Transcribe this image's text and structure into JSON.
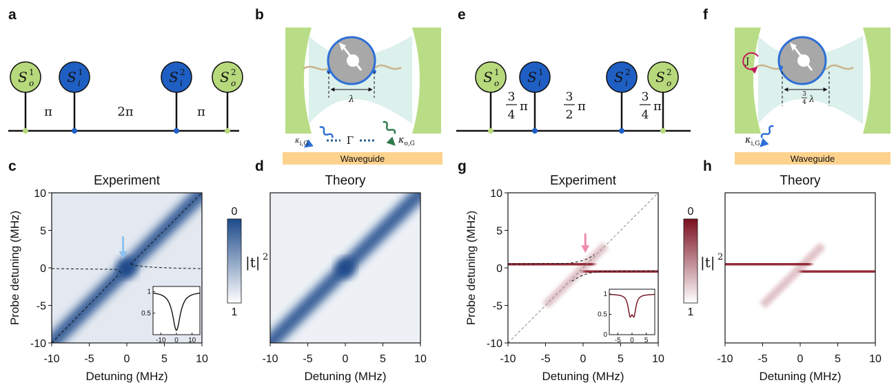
{
  "panel_letters": [
    "a",
    "b",
    "c",
    "d",
    "e",
    "f",
    "g",
    "h"
  ],
  "diagram_a": {
    "nodes": [
      {
        "letter": "S",
        "sup": "1",
        "sub": "o",
        "color": "#b7d97c"
      },
      {
        "letter": "S",
        "sup": "1",
        "sub": "i",
        "color": "#1f5fc4"
      },
      {
        "letter": "S",
        "sup": "2",
        "sub": "i",
        "color": "#1f5fc4"
      },
      {
        "letter": "S",
        "sup": "2",
        "sub": "o",
        "color": "#b7d97c"
      }
    ],
    "phases": [
      "π",
      "2π",
      "π"
    ]
  },
  "diagram_b": {
    "lambda": "λ",
    "gamma": "Γ",
    "kappa_in": {
      "symbol": "κ",
      "sub": "i,G"
    },
    "kappa_out": {
      "symbol": "κ",
      "sub": "o,G"
    },
    "waveguide": "Waveguide"
  },
  "diagram_e": {
    "nodes": [
      {
        "letter": "S",
        "sup": "1",
        "sub": "o",
        "color": "#b7d97c"
      },
      {
        "letter": "S",
        "sup": "1",
        "sub": "i",
        "color": "#1f5fc4"
      },
      {
        "letter": "S",
        "sup": "2",
        "sub": "i",
        "color": "#1f5fc4"
      },
      {
        "letter": "S",
        "sup": "2",
        "sub": "o",
        "color": "#b7d97c"
      }
    ],
    "phases": [
      {
        "num": "3",
        "den": "4",
        "symbol": "π"
      },
      {
        "num": "3",
        "den": "2",
        "symbol": "π"
      },
      {
        "num": "3",
        "den": "4",
        "symbol": "π"
      }
    ]
  },
  "diagram_f": {
    "coupling": "J",
    "spacing": {
      "num": "3",
      "den": "4",
      "symbol": "λ"
    },
    "kappa_in": {
      "symbol": "κ",
      "sub": "i,G"
    },
    "waveguide": "Waveguide"
  },
  "plots": [
    {
      "title": "Experiment",
      "xlabel": "Detuning  (MHz)",
      "ylabel": "Probe detuning  (MHz)",
      "xlim": [
        -10,
        10
      ],
      "ylim": [
        -10,
        10
      ],
      "xticks": [
        -10,
        -5,
        0,
        5,
        10
      ],
      "yticks": [
        -10,
        -5,
        0,
        5,
        10
      ],
      "color": "#1d4a8a",
      "inset": {
        "xlim": [
          -15,
          15
        ],
        "ylim": [
          0,
          1.12
        ],
        "xticks": [
          -10,
          0,
          10
        ],
        "yticks": [
          0.5,
          1
        ]
      }
    },
    {
      "title": "Theory",
      "xlabel": "Detuning  (MHz)",
      "xlim": [
        -10,
        10
      ],
      "ylim": [
        -10,
        10
      ],
      "xticks": [
        -10,
        -5,
        0,
        5,
        10
      ],
      "color": "#1d4a8a"
    },
    {
      "title": "Experiment",
      "xlabel": "Detuning  (MHz)",
      "ylabel": "Probe detuning  (MHz)",
      "xlim": [
        -10,
        10
      ],
      "ylim": [
        -10,
        10
      ],
      "xticks": [
        -10,
        -5,
        0,
        5,
        10
      ],
      "yticks": [
        -10,
        -5,
        0,
        5,
        10
      ],
      "color": "#8a1526",
      "inset": {
        "xlim": [
          -8,
          8
        ],
        "ylim": [
          0,
          1.12
        ],
        "xticks": [
          -5,
          0,
          5
        ],
        "yticks": [
          0,
          0.5,
          1
        ]
      }
    },
    {
      "title": "Theory",
      "xlabel": "Detuning (MHz)",
      "xlim": [
        -10,
        10
      ],
      "ylim": [
        -10,
        10
      ],
      "xticks": [
        -10,
        -5,
        0,
        5,
        10
      ],
      "color": "#8a1526"
    }
  ],
  "colorbars": [
    {
      "top": 0,
      "bottom": 1,
      "label": "|t|",
      "sup": "2",
      "color": "#1d4a8a"
    },
    {
      "top": 0,
      "bottom": 1,
      "label": "|t|",
      "sup": "2",
      "color": "#7a0f20"
    }
  ]
}
